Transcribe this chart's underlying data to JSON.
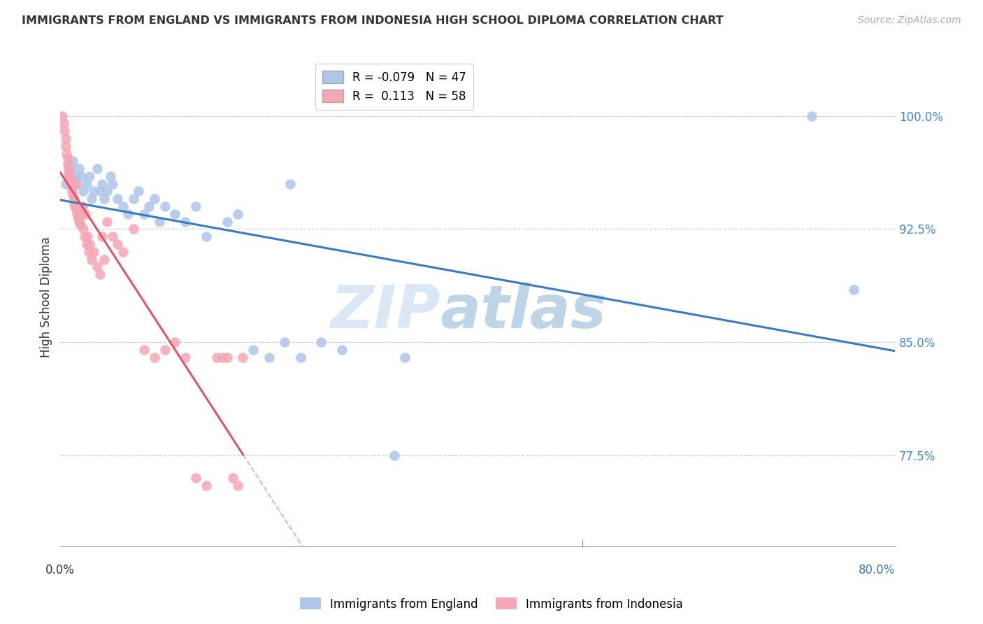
{
  "title": "IMMIGRANTS FROM ENGLAND VS IMMIGRANTS FROM INDONESIA HIGH SCHOOL DIPLOMA CORRELATION CHART",
  "source": "Source: ZipAtlas.com",
  "ylabel": "High School Diploma",
  "ytick_labels": [
    "100.0%",
    "92.5%",
    "85.0%",
    "77.5%"
  ],
  "ytick_values": [
    1.0,
    0.925,
    0.85,
    0.775
  ],
  "xlim": [
    0.0,
    0.8
  ],
  "ylim": [
    0.715,
    1.045
  ],
  "england_color": "#aec6e8",
  "indonesia_color": "#f4a7b5",
  "england_line_color": "#3a7abf",
  "indonesia_line_color": "#d9566b",
  "watermark_zip": "ZIP",
  "watermark_atlas": "atlas",
  "england_scatter_x": [
    0.005,
    0.008,
    0.01,
    0.012,
    0.015,
    0.015,
    0.018,
    0.02,
    0.022,
    0.025,
    0.028,
    0.03,
    0.032,
    0.035,
    0.038,
    0.04,
    0.042,
    0.045,
    0.048,
    0.05,
    0.055,
    0.06,
    0.065,
    0.07,
    0.075,
    0.08,
    0.085,
    0.09,
    0.095,
    0.1,
    0.11,
    0.12,
    0.13,
    0.14,
    0.16,
    0.17,
    0.185,
    0.2,
    0.215,
    0.22,
    0.23,
    0.25,
    0.27,
    0.32,
    0.33,
    0.72,
    0.76
  ],
  "england_scatter_y": [
    0.955,
    0.96,
    0.965,
    0.97,
    0.96,
    0.955,
    0.965,
    0.96,
    0.95,
    0.955,
    0.96,
    0.945,
    0.95,
    0.965,
    0.95,
    0.955,
    0.945,
    0.95,
    0.96,
    0.955,
    0.945,
    0.94,
    0.935,
    0.945,
    0.95,
    0.935,
    0.94,
    0.945,
    0.93,
    0.94,
    0.935,
    0.93,
    0.94,
    0.92,
    0.93,
    0.935,
    0.845,
    0.84,
    0.85,
    0.955,
    0.84,
    0.85,
    0.845,
    0.775,
    0.84,
    1.0,
    0.885
  ],
  "indonesia_scatter_x": [
    0.002,
    0.003,
    0.004,
    0.005,
    0.005,
    0.006,
    0.007,
    0.007,
    0.008,
    0.008,
    0.009,
    0.01,
    0.01,
    0.011,
    0.011,
    0.012,
    0.013,
    0.013,
    0.014,
    0.015,
    0.015,
    0.016,
    0.017,
    0.018,
    0.019,
    0.02,
    0.021,
    0.022,
    0.023,
    0.024,
    0.025,
    0.026,
    0.027,
    0.028,
    0.03,
    0.032,
    0.035,
    0.038,
    0.04,
    0.042,
    0.045,
    0.05,
    0.055,
    0.06,
    0.07,
    0.08,
    0.09,
    0.1,
    0.11,
    0.12,
    0.13,
    0.14,
    0.15,
    0.155,
    0.16,
    0.165,
    0.17,
    0.175
  ],
  "indonesia_scatter_y": [
    1.0,
    0.995,
    0.99,
    0.985,
    0.98,
    0.975,
    0.972,
    0.968,
    0.965,
    0.962,
    0.96,
    0.958,
    0.955,
    0.953,
    0.95,
    0.948,
    0.945,
    0.942,
    0.94,
    0.938,
    0.955,
    0.935,
    0.932,
    0.93,
    0.928,
    0.935,
    0.94,
    0.925,
    0.92,
    0.935,
    0.915,
    0.92,
    0.91,
    0.915,
    0.905,
    0.91,
    0.9,
    0.895,
    0.92,
    0.905,
    0.93,
    0.92,
    0.915,
    0.91,
    0.925,
    0.845,
    0.84,
    0.845,
    0.85,
    0.84,
    0.76,
    0.755,
    0.84,
    0.84,
    0.84,
    0.76,
    0.755,
    0.84
  ]
}
